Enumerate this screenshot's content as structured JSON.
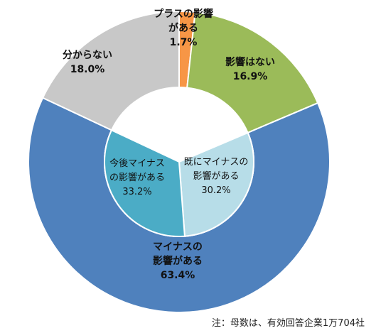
{
  "chart_data": {
    "type": "pie",
    "style": "nested-donut",
    "outer_ring": [
      {
        "label_lines": [
          "プラスの影響",
          "がある"
        ],
        "value": 1.7,
        "value_label": "1.7%",
        "color": "#f79646"
      },
      {
        "label_lines": [
          "影響はない"
        ],
        "value": 16.9,
        "value_label": "16.9%",
        "color": "#9bbb59"
      },
      {
        "label_lines": [
          "マイナスの",
          "影響がある"
        ],
        "value": 63.4,
        "value_label": "63.4%",
        "color": "#4f81bd"
      },
      {
        "label_lines": [
          "分からない"
        ],
        "value": 18.0,
        "value_label": "18.0%",
        "color": "#c8c8c8"
      }
    ],
    "inner_ring": [
      {
        "label_lines": [
          "既にマイナスの",
          "影響がある"
        ],
        "value": 30.2,
        "value_label": "30.2%",
        "color": "#b7dde8"
      },
      {
        "label_lines": [
          "今後マイナス",
          "の影響がある"
        ],
        "value": 33.2,
        "value_label": "33.2%",
        "color": "#4bacc6"
      }
    ],
    "note": "注：母数は、有効回答企業1万704社"
  }
}
